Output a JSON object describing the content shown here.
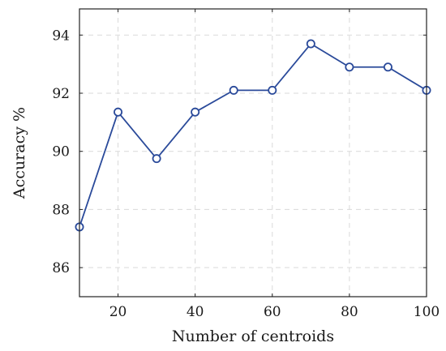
{
  "chart_data": {
    "type": "line",
    "title": "",
    "xlabel": "Number of centroids",
    "ylabel": "Accuracy %",
    "xlim": [
      10,
      100
    ],
    "ylim": [
      85,
      94.9
    ],
    "xticks": [
      20,
      40,
      60,
      80,
      100
    ],
    "yticks": [
      86,
      88,
      90,
      92,
      94
    ],
    "grid": true,
    "series": [
      {
        "x": [
          10,
          20,
          30,
          40,
          50,
          60,
          70,
          80,
          90,
          100
        ],
        "values": [
          87.4,
          91.35,
          89.75,
          91.35,
          92.1,
          92.1,
          93.7,
          92.9,
          92.9,
          92.1
        ],
        "color": "#2a4a9a",
        "marker": "circle-open"
      }
    ]
  }
}
